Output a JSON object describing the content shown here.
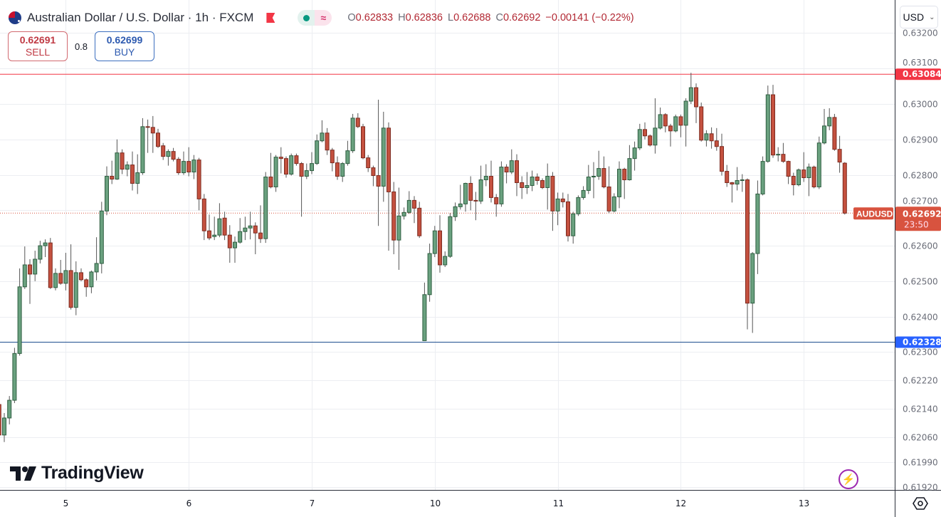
{
  "header": {
    "title": "Australian Dollar / U.S. Dollar · 1h · FXCM",
    "flag_icon": "au-us-flag-icon",
    "ohlc": {
      "o_label": "O",
      "o": "0.62833",
      "h_label": "H",
      "h": "0.62836",
      "l_label": "L",
      "l": "0.62688",
      "c_label": "C",
      "c": "0.62692",
      "change": "−0.00141 (−0.22%)"
    },
    "value_color": "#b22833"
  },
  "trade": {
    "sell_price": "0.62691",
    "sell_label": "SELL",
    "spread": "0.8",
    "buy_price": "0.62699",
    "buy_label": "BUY"
  },
  "currency_select": {
    "value": "USD"
  },
  "logo": {
    "text": "TradingView"
  },
  "price_labels": {
    "resistance": {
      "value": "0.63084",
      "price": 0.63084,
      "color": "#f23645"
    },
    "support": {
      "value": "0.62328",
      "price": 0.62328,
      "color": "#2962ff"
    },
    "last": {
      "symbol": "AUDUSD",
      "value": "0.62692",
      "price": 0.62692,
      "countdown": "23:50",
      "color": "#d8533f"
    }
  },
  "chart_data": {
    "type": "candlestick",
    "symbol": "AUDUSD",
    "interval": "1h",
    "ylim": [
      0.61915,
      0.63217
    ],
    "grid": true,
    "y_ticks": [
      "0.63200",
      "0.63100",
      "0.63000",
      "0.62900",
      "0.62800",
      "0.62700",
      "0.62600",
      "0.62500",
      "0.62400",
      "0.62300",
      "0.62220",
      "0.62140",
      "0.62060",
      "0.61990",
      "0.61920"
    ],
    "x_ticks": [
      {
        "label": "5",
        "index": 13
      },
      {
        "label": "6",
        "index": 37
      },
      {
        "label": "7",
        "index": 61
      },
      {
        "label": "10",
        "index": 85
      },
      {
        "label": "11",
        "index": 109
      },
      {
        "label": "12",
        "index": 133
      },
      {
        "label": "13",
        "index": 157
      }
    ],
    "colors": {
      "up": "#6aa17f",
      "up_border": "#2f5e41",
      "down": "#c4513f",
      "down_border": "#7d2b20"
    },
    "ohlc_columns": [
      "open",
      "high",
      "low",
      "close"
    ],
    "candles": [
      [
        0.62152,
        0.6216,
        0.6205,
        0.62066
      ],
      [
        0.62066,
        0.62128,
        0.62046,
        0.62114
      ],
      [
        0.62114,
        0.62176,
        0.62096,
        0.62164
      ],
      [
        0.62164,
        0.62312,
        0.62156,
        0.62296
      ],
      [
        0.62296,
        0.62536,
        0.6229,
        0.62484
      ],
      [
        0.62484,
        0.62598,
        0.62478,
        0.62546
      ],
      [
        0.62546,
        0.62562,
        0.62436,
        0.6252
      ],
      [
        0.6252,
        0.62586,
        0.625,
        0.62562
      ],
      [
        0.62562,
        0.62614,
        0.6255,
        0.626
      ],
      [
        0.626,
        0.62618,
        0.62568,
        0.62608
      ],
      [
        0.62608,
        0.62622,
        0.62478,
        0.62482
      ],
      [
        0.62482,
        0.62536,
        0.62474,
        0.62522
      ],
      [
        0.62522,
        0.6256,
        0.6249,
        0.62494
      ],
      [
        0.62494,
        0.6258,
        0.62474,
        0.6253
      ],
      [
        0.6253,
        0.62604,
        0.6242,
        0.62426
      ],
      [
        0.62426,
        0.62556,
        0.62404,
        0.62524
      ],
      [
        0.62524,
        0.62536,
        0.625,
        0.62504
      ],
      [
        0.62504,
        0.62508,
        0.62456,
        0.62484
      ],
      [
        0.62484,
        0.6253,
        0.62466,
        0.62526
      ],
      [
        0.62526,
        0.62624,
        0.62502,
        0.6255
      ],
      [
        0.6255,
        0.62724,
        0.62522,
        0.62698
      ],
      [
        0.62698,
        0.62824,
        0.62686,
        0.62796
      ],
      [
        0.62796,
        0.6284,
        0.62774,
        0.62788
      ],
      [
        0.62788,
        0.629,
        0.62786,
        0.62862
      ],
      [
        0.62862,
        0.62872,
        0.62802,
        0.62816
      ],
      [
        0.62816,
        0.62838,
        0.62796,
        0.62828
      ],
      [
        0.62828,
        0.62866,
        0.62756,
        0.62776
      ],
      [
        0.62776,
        0.62858,
        0.62746,
        0.62806
      ],
      [
        0.62806,
        0.6296,
        0.628,
        0.62936
      ],
      [
        0.62936,
        0.62956,
        0.62862,
        0.62934
      ],
      [
        0.62934,
        0.62966,
        0.62862,
        0.62918
      ],
      [
        0.62918,
        0.6293,
        0.62876,
        0.6288
      ],
      [
        0.62882,
        0.6289,
        0.62842,
        0.62852
      ],
      [
        0.62852,
        0.62872,
        0.62826,
        0.62866
      ],
      [
        0.62866,
        0.62876,
        0.62838,
        0.62844
      ],
      [
        0.62844,
        0.6285,
        0.628,
        0.62806
      ],
      [
        0.62806,
        0.62866,
        0.628,
        0.62838
      ],
      [
        0.62838,
        0.62878,
        0.62796,
        0.62808
      ],
      [
        0.62808,
        0.62856,
        0.62788,
        0.62842
      ],
      [
        0.62842,
        0.62848,
        0.627,
        0.62732
      ],
      [
        0.62732,
        0.62746,
        0.62616,
        0.62642
      ],
      [
        0.62642,
        0.62688,
        0.62616,
        0.62622
      ],
      [
        0.62626,
        0.62682,
        0.62616,
        0.6263
      ],
      [
        0.6263,
        0.6272,
        0.62624,
        0.62676
      ],
      [
        0.62678,
        0.62696,
        0.62616,
        0.6263
      ],
      [
        0.6263,
        0.62658,
        0.62552,
        0.62594
      ],
      [
        0.62594,
        0.62626,
        0.62552,
        0.6261
      ],
      [
        0.6261,
        0.62678,
        0.62606,
        0.6264
      ],
      [
        0.6264,
        0.62682,
        0.62616,
        0.6265
      ],
      [
        0.6265,
        0.62696,
        0.62618,
        0.62656
      ],
      [
        0.62656,
        0.62666,
        0.62576,
        0.62636
      ],
      [
        0.62636,
        0.62714,
        0.62608,
        0.6262
      ],
      [
        0.6262,
        0.62808,
        0.62608,
        0.62794
      ],
      [
        0.62794,
        0.62862,
        0.62762,
        0.62766
      ],
      [
        0.62766,
        0.62856,
        0.62752,
        0.6285
      ],
      [
        0.6285,
        0.62878,
        0.62804,
        0.62846
      ],
      [
        0.62846,
        0.62852,
        0.62792,
        0.62802
      ],
      [
        0.62802,
        0.6286,
        0.62798,
        0.62854
      ],
      [
        0.62854,
        0.6286,
        0.62826,
        0.62832
      ],
      [
        0.62832,
        0.62836,
        0.62682,
        0.62796
      ],
      [
        0.62796,
        0.62832,
        0.62788,
        0.62812
      ],
      [
        0.62812,
        0.62864,
        0.62802,
        0.62832
      ],
      [
        0.62832,
        0.62914,
        0.62828,
        0.62896
      ],
      [
        0.62896,
        0.62954,
        0.62892,
        0.62918
      ],
      [
        0.62918,
        0.62932,
        0.62856,
        0.6287
      ],
      [
        0.6287,
        0.62876,
        0.6281,
        0.62834
      ],
      [
        0.62834,
        0.62852,
        0.62786,
        0.62796
      ],
      [
        0.62796,
        0.62836,
        0.6278,
        0.62832
      ],
      [
        0.62832,
        0.62896,
        0.62826,
        0.62868
      ],
      [
        0.62868,
        0.62972,
        0.62862,
        0.6296
      ],
      [
        0.6296,
        0.62974,
        0.62932,
        0.62936
      ],
      [
        0.62936,
        0.62944,
        0.62844,
        0.62848
      ],
      [
        0.62848,
        0.62856,
        0.62808,
        0.6282
      ],
      [
        0.6282,
        0.62826,
        0.62768,
        0.62798
      ],
      [
        0.62798,
        0.63012,
        0.62656,
        0.62768
      ],
      [
        0.62768,
        0.62978,
        0.62724,
        0.62932
      ],
      [
        0.62932,
        0.62948,
        0.62586,
        0.62752
      ],
      [
        0.62752,
        0.6278,
        0.62576,
        0.62616
      ],
      [
        0.62616,
        0.62764,
        0.62532,
        0.62684
      ],
      [
        0.62684,
        0.62708,
        0.62674,
        0.62694
      ],
      [
        0.62694,
        0.62754,
        0.6269,
        0.62728
      ],
      [
        0.62728,
        0.6274,
        0.62664,
        0.62706
      ],
      [
        0.62706,
        0.62724,
        0.62622,
        0.62628
      ],
      [
        0.62332,
        0.62496,
        0.62332,
        0.62462
      ],
      [
        0.62462,
        0.62606,
        0.62442,
        0.62578
      ],
      [
        0.62578,
        0.62656,
        0.62568,
        0.62642
      ],
      [
        0.62642,
        0.62686,
        0.62524,
        0.62546
      ],
      [
        0.62546,
        0.62584,
        0.6254,
        0.6257
      ],
      [
        0.6257,
        0.62692,
        0.62566,
        0.62682
      ],
      [
        0.62682,
        0.62722,
        0.6267,
        0.6271
      ],
      [
        0.6271,
        0.62772,
        0.62702,
        0.62718
      ],
      [
        0.62718,
        0.62778,
        0.62696,
        0.62776
      ],
      [
        0.62776,
        0.62796,
        0.627,
        0.62728
      ],
      [
        0.62728,
        0.62752,
        0.62672,
        0.62726
      ],
      [
        0.62726,
        0.62826,
        0.62718,
        0.62786
      ],
      [
        0.62786,
        0.6283,
        0.62768,
        0.62796
      ],
      [
        0.62796,
        0.6284,
        0.62722,
        0.62736
      ],
      [
        0.62736,
        0.62746,
        0.62682,
        0.62718
      ],
      [
        0.62718,
        0.62838,
        0.6271,
        0.62822
      ],
      [
        0.62822,
        0.6283,
        0.62776,
        0.62808
      ],
      [
        0.62808,
        0.62872,
        0.62802,
        0.6284
      ],
      [
        0.6284,
        0.62858,
        0.6274,
        0.62778
      ],
      [
        0.62778,
        0.62796,
        0.62732,
        0.62764
      ],
      [
        0.62764,
        0.62808,
        0.62746,
        0.6277
      ],
      [
        0.6277,
        0.62812,
        0.62754,
        0.62794
      ],
      [
        0.62794,
        0.62804,
        0.62772,
        0.62784
      ],
      [
        0.62784,
        0.6279,
        0.6276,
        0.62764
      ],
      [
        0.62764,
        0.62832,
        0.62702,
        0.62796
      ],
      [
        0.62796,
        0.62808,
        0.62642,
        0.62698
      ],
      [
        0.62698,
        0.6275,
        0.62658,
        0.62732
      ],
      [
        0.62732,
        0.6275,
        0.62708,
        0.62724
      ],
      [
        0.62724,
        0.62746,
        0.62612,
        0.62628
      ],
      [
        0.62628,
        0.62696,
        0.62606,
        0.6269
      ],
      [
        0.6269,
        0.62742,
        0.62684,
        0.62736
      ],
      [
        0.62736,
        0.62768,
        0.6273,
        0.62756
      ],
      [
        0.62756,
        0.62828,
        0.62746,
        0.62794
      ],
      [
        0.62794,
        0.62836,
        0.62734,
        0.62796
      ],
      [
        0.62796,
        0.62868,
        0.62786,
        0.62818
      ],
      [
        0.62818,
        0.62852,
        0.62762,
        0.62766
      ],
      [
        0.62766,
        0.62824,
        0.62692,
        0.62698
      ],
      [
        0.62698,
        0.62748,
        0.62694,
        0.62738
      ],
      [
        0.62738,
        0.62838,
        0.62706,
        0.62816
      ],
      [
        0.62816,
        0.6282,
        0.62732,
        0.62786
      ],
      [
        0.62786,
        0.62884,
        0.62784,
        0.62846
      ],
      [
        0.62846,
        0.62894,
        0.62812,
        0.62876
      ],
      [
        0.62876,
        0.62944,
        0.6287,
        0.62928
      ],
      [
        0.62928,
        0.62948,
        0.629,
        0.6291
      ],
      [
        0.6291,
        0.62914,
        0.6288,
        0.62884
      ],
      [
        0.62884,
        0.63016,
        0.6286,
        0.62932
      ],
      [
        0.62932,
        0.6299,
        0.62928,
        0.6297
      ],
      [
        0.6297,
        0.62974,
        0.6292,
        0.62938
      ],
      [
        0.62938,
        0.62944,
        0.6288,
        0.62924
      ],
      [
        0.62924,
        0.6297,
        0.6292,
        0.62964
      ],
      [
        0.62964,
        0.6297,
        0.62906,
        0.6294
      ],
      [
        0.6294,
        0.63016,
        0.6288,
        0.63008
      ],
      [
        0.63008,
        0.63088,
        0.63,
        0.63046
      ],
      [
        0.63046,
        0.63058,
        0.62946,
        0.62992
      ],
      [
        0.62992,
        0.63004,
        0.62894,
        0.62898
      ],
      [
        0.62898,
        0.62926,
        0.6288,
        0.62916
      ],
      [
        0.62916,
        0.62934,
        0.62874,
        0.62896
      ],
      [
        0.62896,
        0.62932,
        0.62868,
        0.6288
      ],
      [
        0.6288,
        0.62916,
        0.62798,
        0.6281
      ],
      [
        0.6281,
        0.62828,
        0.62766,
        0.62778
      ],
      [
        0.62778,
        0.6278,
        0.62722,
        0.62774
      ],
      [
        0.62774,
        0.62822,
        0.62756,
        0.62784
      ],
      [
        0.62784,
        0.62802,
        0.62752,
        0.62786
      ],
      [
        0.62786,
        0.6279,
        0.62364,
        0.62438
      ],
      [
        0.62438,
        0.62582,
        0.62354,
        0.62578
      ],
      [
        0.62578,
        0.62784,
        0.6252,
        0.62746
      ],
      [
        0.62746,
        0.62852,
        0.62742,
        0.62838
      ],
      [
        0.62838,
        0.63052,
        0.62834,
        0.63026
      ],
      [
        0.63026,
        0.63054,
        0.62848,
        0.62856
      ],
      [
        0.62856,
        0.62878,
        0.62838,
        0.62858
      ],
      [
        0.62858,
        0.6289,
        0.62834,
        0.62838
      ],
      [
        0.62838,
        0.6284,
        0.62774,
        0.62796
      ],
      [
        0.62796,
        0.62806,
        0.62742,
        0.62772
      ],
      [
        0.62772,
        0.62818,
        0.62768,
        0.62814
      ],
      [
        0.62814,
        0.62864,
        0.6278,
        0.62792
      ],
      [
        0.62792,
        0.62832,
        0.6274,
        0.62822
      ],
      [
        0.62822,
        0.62826,
        0.62762,
        0.62766
      ],
      [
        0.62766,
        0.62908,
        0.6276,
        0.6289
      ],
      [
        0.6289,
        0.62986,
        0.62886,
        0.62938
      ],
      [
        0.62938,
        0.62988,
        0.62926,
        0.62962
      ],
      [
        0.62962,
        0.62972,
        0.62868,
        0.62872
      ],
      [
        0.62872,
        0.6291,
        0.62806,
        0.62836
      ],
      [
        0.62833,
        0.62836,
        0.62688,
        0.62692
      ]
    ]
  }
}
